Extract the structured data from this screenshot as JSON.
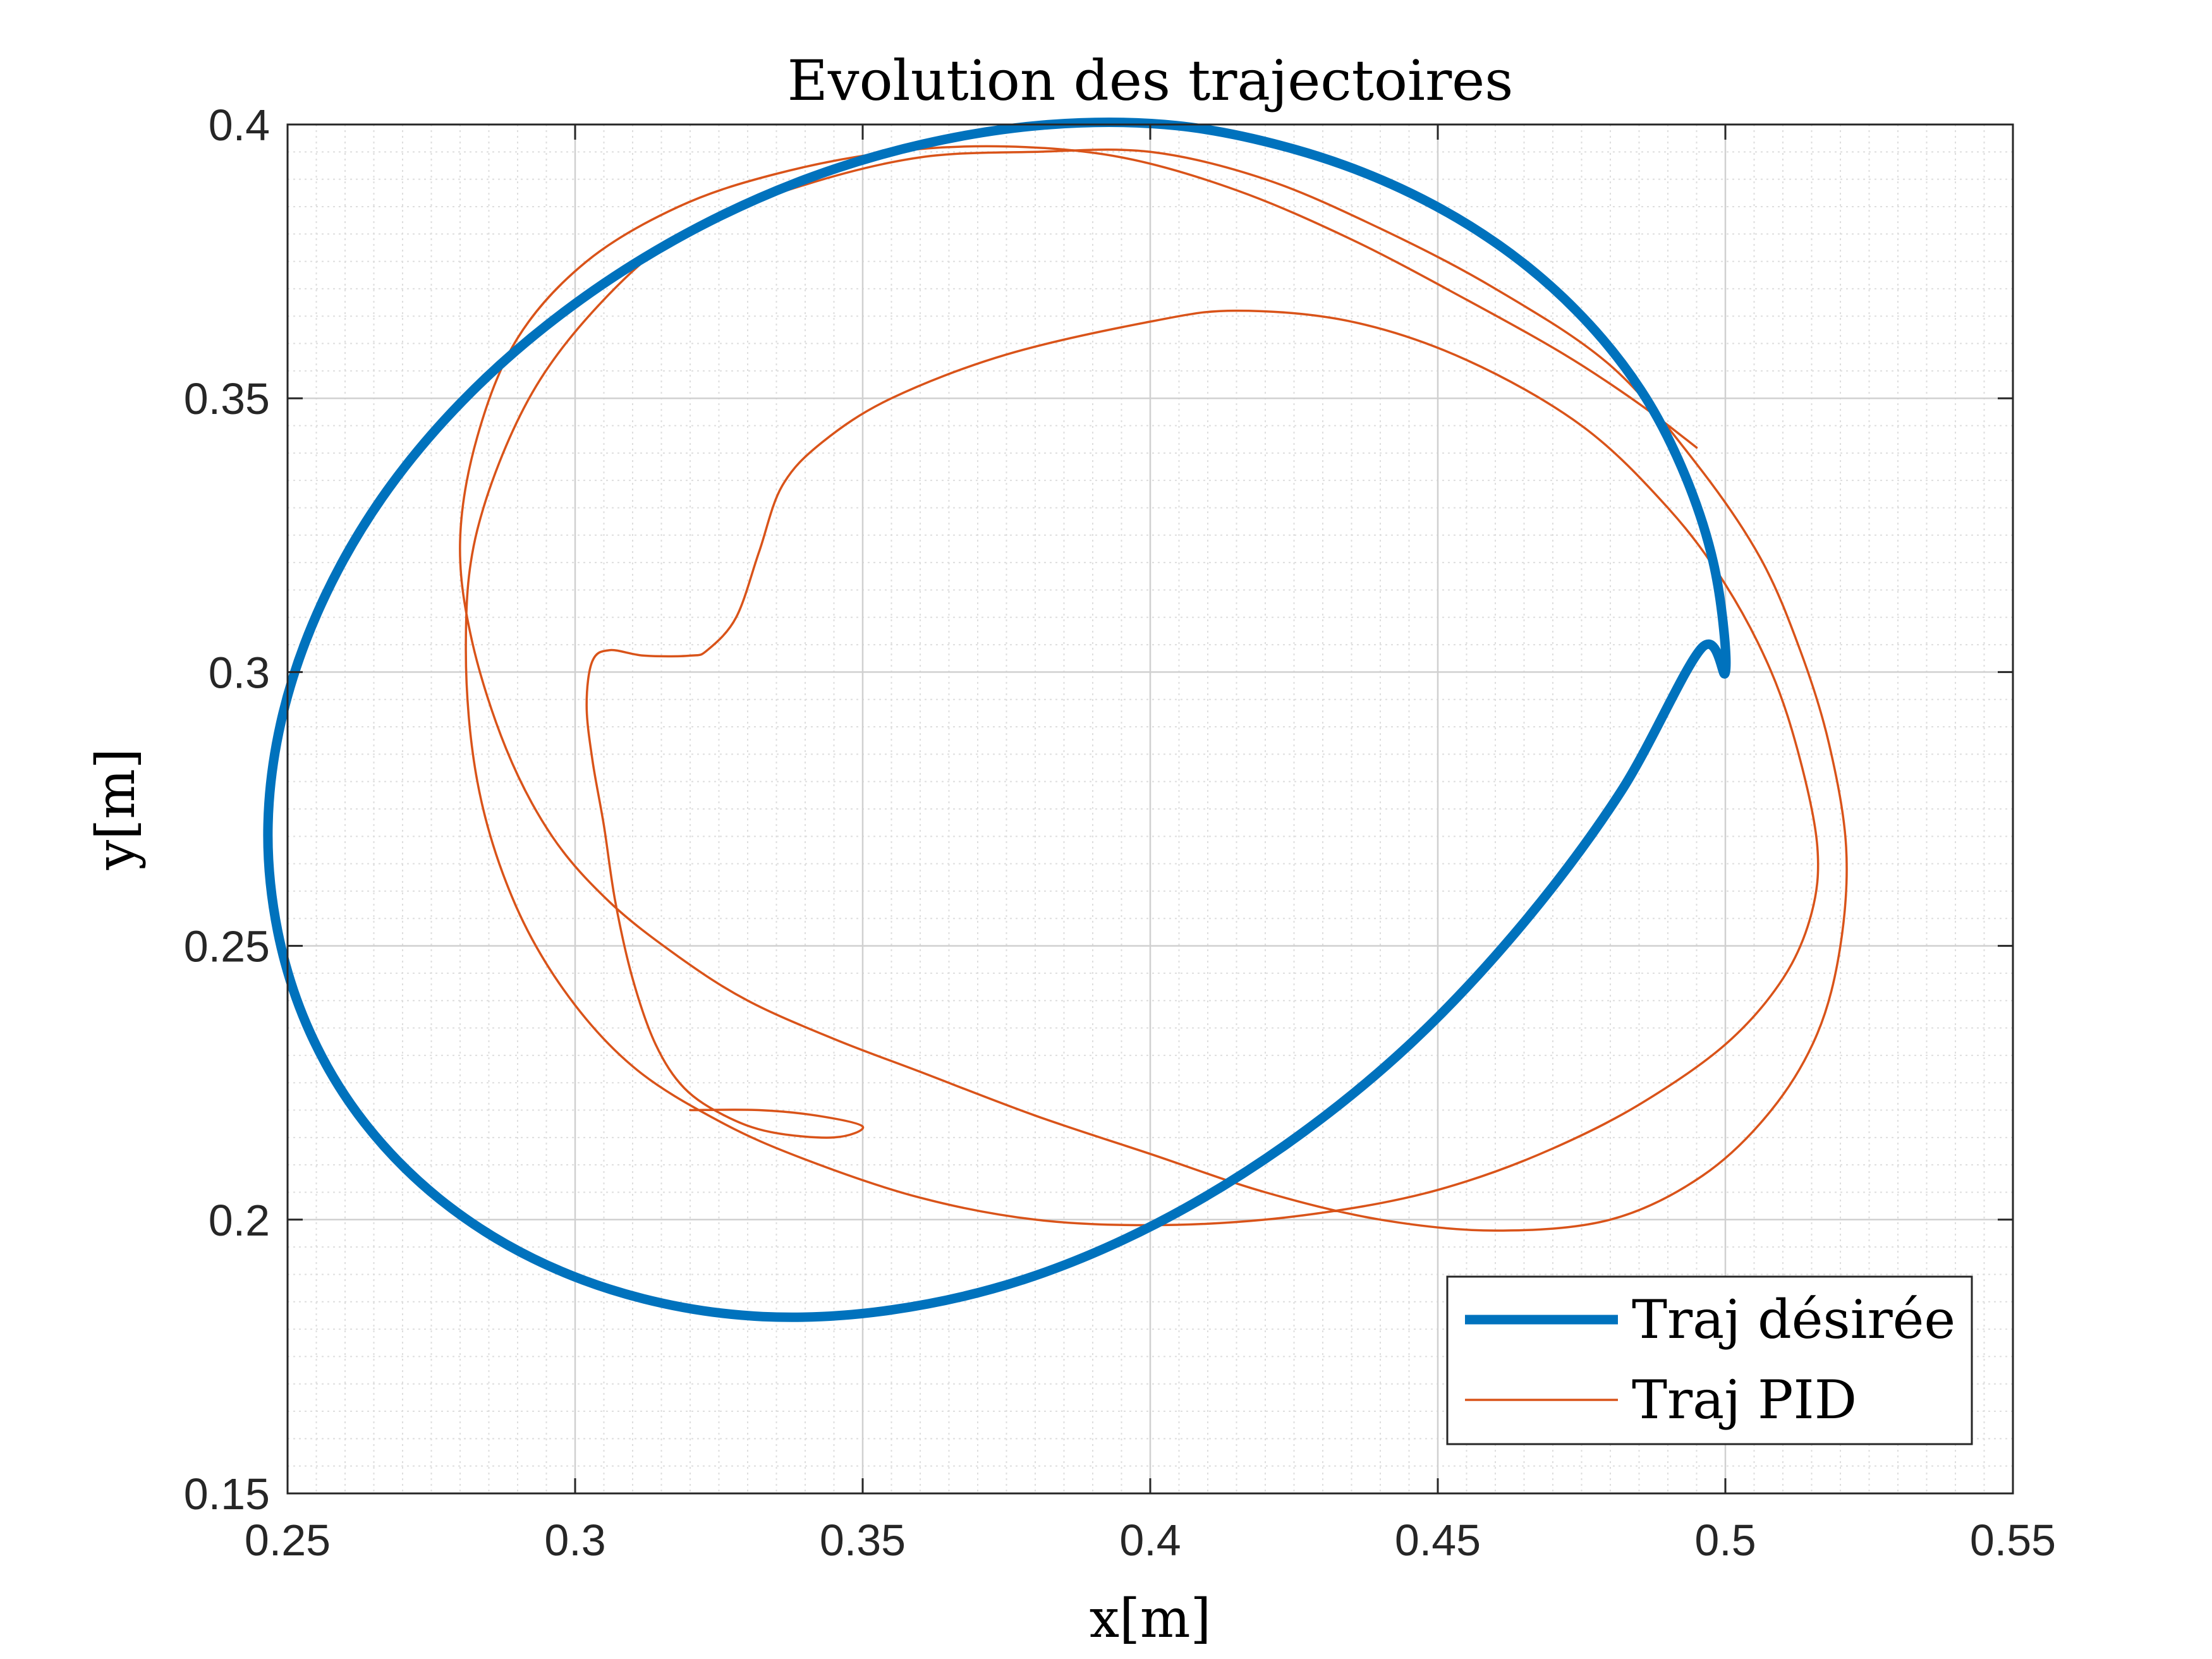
{
  "chart_data": {
    "type": "line",
    "title": "Evolution des trajectoires",
    "xlabel": "x[m]",
    "ylabel": "y[m]",
    "xlim": [
      0.25,
      0.55
    ],
    "ylim": [
      0.15,
      0.4
    ],
    "xticks": [
      0.25,
      0.3,
      0.35,
      0.4,
      0.45,
      0.5,
      0.55
    ],
    "yticks": [
      0.15,
      0.2,
      0.25,
      0.3,
      0.35,
      0.4
    ],
    "xtick_labels": [
      "0.25",
      "0.3",
      "0.35",
      "0.4",
      "0.45",
      "0.5",
      "0.55"
    ],
    "ytick_labels": [
      "0.15",
      "0.2",
      "0.25",
      "0.3",
      "0.35",
      "0.4"
    ],
    "grid": true,
    "minor_grid": true,
    "legend_position": "bottom-right",
    "series": [
      {
        "name": "Traj désirée",
        "color": "#0072BD",
        "style": "thick",
        "x": [
          0.5,
          0.4983,
          0.4932,
          0.4853,
          0.4741,
          0.4602,
          0.4436,
          0.425,
          0.4045,
          0.3827,
          0.3604,
          0.3383,
          0.3171,
          0.2976,
          0.2805,
          0.2664,
          0.2559,
          0.2492,
          0.2466,
          0.2483,
          0.2539,
          0.2633,
          0.2764,
          0.2927,
          0.3117,
          0.3326,
          0.3549,
          0.3781,
          0.4011,
          0.4236,
          0.4451,
          0.4646,
          0.4818,
          0.4958
        ],
        "y": [
          0.3,
          0.3181,
          0.3354,
          0.3515,
          0.366,
          0.3783,
          0.3883,
          0.3955,
          0.3998,
          0.4,
          0.3964,
          0.3893,
          0.3788,
          0.3654,
          0.3496,
          0.3318,
          0.3125,
          0.2924,
          0.2722,
          0.2526,
          0.2342,
          0.2178,
          0.2038,
          0.1929,
          0.1856,
          0.1823,
          0.1835,
          0.1891,
          0.1993,
          0.2137,
          0.232,
          0.2538,
          0.2781,
          0.3043
        ]
      },
      {
        "name": "Traj PID",
        "color": "#D95319",
        "style": "thin",
        "x": [
          0.32,
          0.332,
          0.342,
          0.35,
          0.345,
          0.334,
          0.326,
          0.319,
          0.314,
          0.31,
          0.307,
          0.305,
          0.303,
          0.302,
          0.303,
          0.306,
          0.312,
          0.32,
          0.323,
          0.328,
          0.332,
          0.336,
          0.343,
          0.355,
          0.375,
          0.4,
          0.415,
          0.435,
          0.455,
          0.475,
          0.49,
          0.5,
          0.508,
          0.513,
          0.516,
          0.515,
          0.51,
          0.5,
          0.485,
          0.47,
          0.455,
          0.44,
          0.42,
          0.4,
          0.38,
          0.36,
          0.34,
          0.325,
          0.31,
          0.298,
          0.289,
          0.283,
          0.281,
          0.283,
          0.292,
          0.305,
          0.32,
          0.34,
          0.36,
          0.38,
          0.4,
          0.42,
          0.44,
          0.46,
          0.48,
          0.495,
          0.506,
          0.513,
          0.518,
          0.521,
          0.52,
          0.516,
          0.508,
          0.496,
          0.48,
          0.46,
          0.44,
          0.42,
          0.4,
          0.38,
          0.36,
          0.345,
          0.33,
          0.318,
          0.306,
          0.296,
          0.288,
          0.282,
          0.28,
          0.283,
          0.29,
          0.302,
          0.318,
          0.335,
          0.355,
          0.375,
          0.395,
          0.415,
          0.435,
          0.455,
          0.472,
          0.485,
          0.495
        ],
        "y": [
          0.22,
          0.22,
          0.219,
          0.217,
          0.215,
          0.216,
          0.219,
          0.224,
          0.232,
          0.244,
          0.258,
          0.272,
          0.284,
          0.294,
          0.302,
          0.304,
          0.303,
          0.303,
          0.304,
          0.31,
          0.322,
          0.334,
          0.342,
          0.35,
          0.358,
          0.364,
          0.366,
          0.364,
          0.357,
          0.345,
          0.33,
          0.316,
          0.3,
          0.284,
          0.268,
          0.256,
          0.244,
          0.232,
          0.221,
          0.213,
          0.207,
          0.203,
          0.2,
          0.199,
          0.2,
          0.204,
          0.211,
          0.218,
          0.228,
          0.242,
          0.259,
          0.28,
          0.304,
          0.326,
          0.35,
          0.368,
          0.381,
          0.389,
          0.394,
          0.395,
          0.395,
          0.39,
          0.381,
          0.37,
          0.356,
          0.338,
          0.321,
          0.304,
          0.287,
          0.268,
          0.25,
          0.234,
          0.22,
          0.208,
          0.2,
          0.198,
          0.2,
          0.205,
          0.212,
          0.219,
          0.227,
          0.233,
          0.24,
          0.248,
          0.258,
          0.27,
          0.286,
          0.306,
          0.324,
          0.343,
          0.361,
          0.375,
          0.385,
          0.391,
          0.395,
          0.396,
          0.394,
          0.388,
          0.379,
          0.368,
          0.358,
          0.349,
          0.341
        ]
      }
    ]
  }
}
